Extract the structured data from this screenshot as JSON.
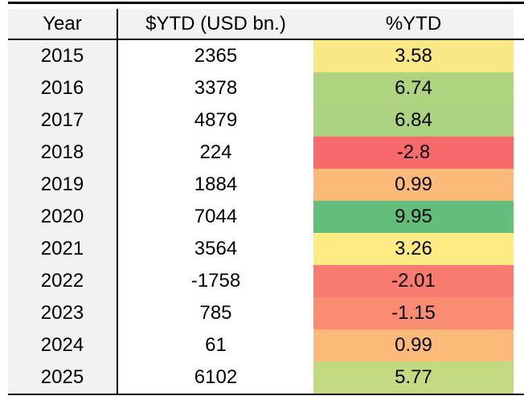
{
  "chart_data": {
    "type": "table",
    "columns": [
      "Year",
      "$YTD (USD bn.)",
      "%YTD"
    ],
    "rows": [
      {
        "year": "2015",
        "usd_ytd": "2365",
        "pct_ytd": "3.58",
        "pct_color": "#F8E984"
      },
      {
        "year": "2016",
        "usd_ytd": "3378",
        "pct_ytd": "6.74",
        "pct_color": "#AED47F"
      },
      {
        "year": "2017",
        "usd_ytd": "4879",
        "pct_ytd": "6.84",
        "pct_color": "#ACD37F"
      },
      {
        "year": "2018",
        "usd_ytd": "224",
        "pct_ytd": "-2.8",
        "pct_color": "#F8696B"
      },
      {
        "year": "2019",
        "usd_ytd": "1884",
        "pct_ytd": "0.99",
        "pct_color": "#FCBA78"
      },
      {
        "year": "2020",
        "usd_ytd": "7044",
        "pct_ytd": "9.95",
        "pct_color": "#63BE7B"
      },
      {
        "year": "2021",
        "usd_ytd": "3564",
        "pct_ytd": "3.26",
        "pct_color": "#FFEB84"
      },
      {
        "year": "2022",
        "usd_ytd": "-1758",
        "pct_ytd": "-2.01",
        "pct_color": "#F97A6E"
      },
      {
        "year": "2023",
        "usd_ytd": "785",
        "pct_ytd": "-1.15",
        "pct_color": "#FA8C71"
      },
      {
        "year": "2024",
        "usd_ytd": "61",
        "pct_ytd": "0.99",
        "pct_color": "#FCBA78"
      },
      {
        "year": "2025",
        "usd_ytd": "6102",
        "pct_ytd": "5.77",
        "pct_color": "#C4DA81"
      }
    ],
    "color_scale": {
      "min_color": "#F8696B",
      "mid_color": "#FFEB84",
      "max_color": "#63BE7B"
    }
  },
  "colors": {
    "page_bg": "#FFFFFF",
    "header_bg": "#F2F2F2",
    "year_column_bg": "#F2F2F2",
    "rule": "#000000",
    "text": "#000000"
  }
}
